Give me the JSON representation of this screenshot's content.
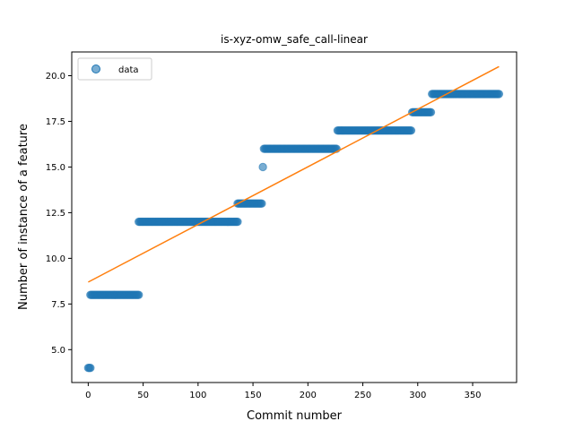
{
  "chart_data": {
    "type": "scatter",
    "title": "is-xyz-omw_safe_call-linear",
    "xlabel": "Commit number",
    "ylabel": "Number of instance of a feature",
    "xlim": [
      -15,
      390
    ],
    "ylim": [
      3.2,
      21.3
    ],
    "xticks": [
      0,
      50,
      100,
      150,
      200,
      250,
      300,
      350
    ],
    "yticks": [
      5.0,
      7.5,
      10.0,
      12.5,
      15.0,
      17.5,
      20.0
    ],
    "ytick_labels": [
      "5.0",
      "7.5",
      "10.0",
      "12.5",
      "15.0",
      "17.5",
      "20.0"
    ],
    "grid": false,
    "legend": {
      "position": "upper-left",
      "entries": [
        "data"
      ]
    },
    "colors": {
      "data": "#1f77b4",
      "fit": "#ff7f0e"
    },
    "series": [
      {
        "name": "data",
        "kind": "scatter",
        "segments": [
          {
            "x_start": 0,
            "x_end": 2,
            "y": 4
          },
          {
            "x_start": 2,
            "x_end": 46,
            "y": 8
          },
          {
            "x_start": 46,
            "x_end": 136,
            "y": 12
          },
          {
            "x_start": 136,
            "x_end": 158,
            "y": 13
          },
          {
            "x_start": 159,
            "x_end": 159,
            "y": 15
          },
          {
            "x_start": 160,
            "x_end": 226,
            "y": 16
          },
          {
            "x_start": 227,
            "x_end": 294,
            "y": 17
          },
          {
            "x_start": 295,
            "x_end": 312,
            "y": 18
          },
          {
            "x_start": 313,
            "x_end": 374,
            "y": 19
          }
        ]
      },
      {
        "kind": "line",
        "x": [
          0,
          374
        ],
        "y": [
          8.7,
          20.5
        ]
      }
    ]
  }
}
